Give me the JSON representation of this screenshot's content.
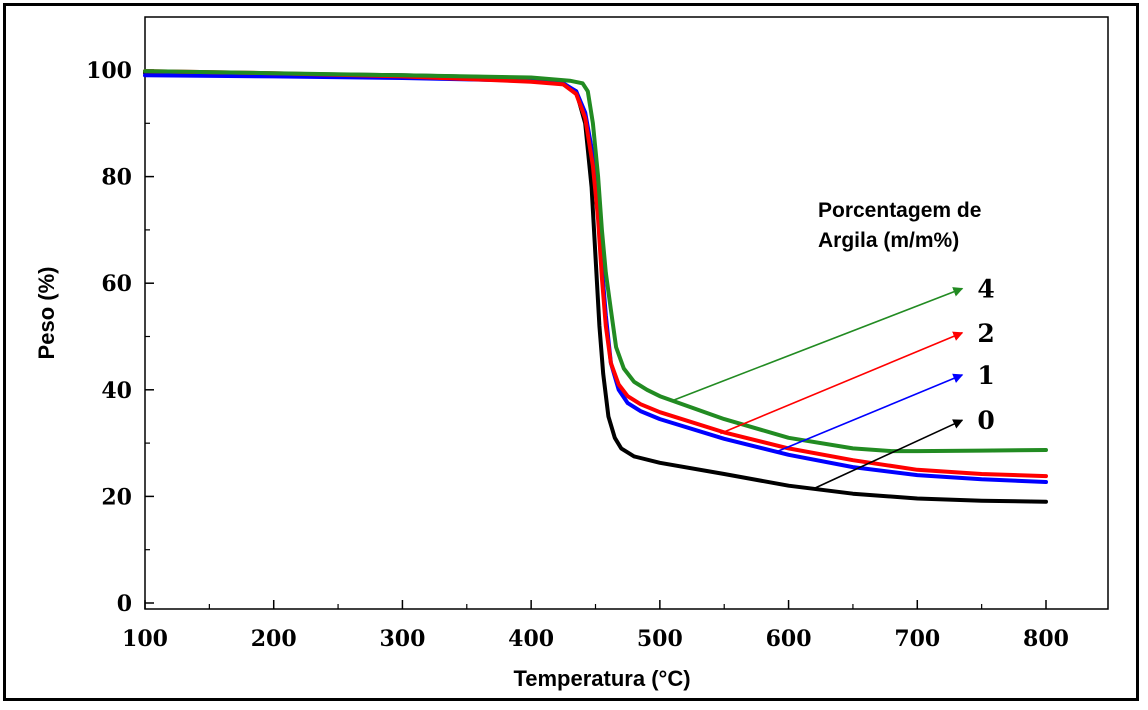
{
  "chart_data": {
    "type": "line",
    "xlabel": "Temperatura (°C)",
    "ylabel": "Peso (%)",
    "xlim": [
      100,
      850
    ],
    "ylim": [
      0,
      110
    ],
    "xticks": [
      100,
      200,
      300,
      400,
      500,
      600,
      700,
      800
    ],
    "yticks": [
      0,
      20,
      40,
      60,
      80,
      100
    ],
    "grid": false,
    "legend_title_lines": [
      "Porcentagem de",
      "Argila (m/m%)"
    ],
    "series": [
      {
        "name": "0",
        "color": "#000000",
        "x": [
          100,
          200,
          300,
          380,
          420,
          435,
          442,
          447,
          450,
          453,
          456,
          460,
          465,
          470,
          480,
          500,
          550,
          600,
          650,
          700,
          750,
          800
        ],
        "y": [
          99.5,
          99.3,
          99.0,
          98.6,
          98.0,
          96.0,
          90.0,
          78.0,
          65.0,
          52.0,
          43.0,
          35.0,
          31.0,
          29.0,
          27.5,
          26.3,
          24.2,
          22.0,
          20.5,
          19.6,
          19.2,
          19.0
        ]
      },
      {
        "name": "1",
        "color": "#0000ff",
        "x": [
          100,
          200,
          300,
          400,
          425,
          435,
          442,
          448,
          452,
          455,
          458,
          462,
          468,
          475,
          485,
          500,
          550,
          600,
          650,
          700,
          750,
          800
        ],
        "y": [
          99.0,
          98.8,
          98.5,
          98.0,
          97.5,
          96.0,
          92.0,
          84.0,
          74.0,
          63.0,
          54.0,
          45.0,
          40.0,
          37.5,
          36.0,
          34.5,
          30.8,
          27.8,
          25.5,
          24.0,
          23.2,
          22.7
        ]
      },
      {
        "name": "2",
        "color": "#ff0000",
        "x": [
          100,
          200,
          300,
          400,
          425,
          435,
          442,
          448,
          452,
          455,
          458,
          462,
          468,
          475,
          485,
          500,
          550,
          600,
          650,
          700,
          750,
          800
        ],
        "y": [
          99.8,
          99.4,
          98.8,
          97.8,
          97.3,
          95.5,
          91.0,
          82.0,
          72.0,
          61.0,
          52.0,
          45.0,
          41.0,
          38.8,
          37.3,
          35.8,
          32.0,
          29.0,
          26.8,
          25.0,
          24.2,
          23.8
        ]
      },
      {
        "name": "4",
        "color": "#228b22",
        "x": [
          100,
          200,
          300,
          400,
          430,
          440,
          444,
          448,
          452,
          455,
          458,
          462,
          466,
          472,
          480,
          490,
          500,
          550,
          600,
          650,
          680,
          700,
          750,
          800
        ],
        "y": [
          99.8,
          99.4,
          99.0,
          98.6,
          98.0,
          97.5,
          96.0,
          90.0,
          80.0,
          70.0,
          62.0,
          55.0,
          48.0,
          44.0,
          41.5,
          40.0,
          38.8,
          34.5,
          31.0,
          29.0,
          28.5,
          28.5,
          28.6,
          28.7
        ]
      }
    ],
    "annotations": [
      {
        "label": "4",
        "from": [
          510,
          38.0
        ],
        "to": [
          735,
          59.0
        ]
      },
      {
        "label": "2",
        "from": [
          547,
          31.8
        ],
        "to": [
          735,
          50.7
        ]
      },
      {
        "label": "1",
        "from": [
          590,
          28.3
        ],
        "to": [
          735,
          42.8
        ]
      },
      {
        "label": "0",
        "from": [
          620,
          21.5
        ],
        "to": [
          735,
          34.3
        ]
      }
    ],
    "label_positions": {
      "4": 59.0,
      "2": 50.7,
      "1": 42.8,
      "0": 34.3
    }
  }
}
